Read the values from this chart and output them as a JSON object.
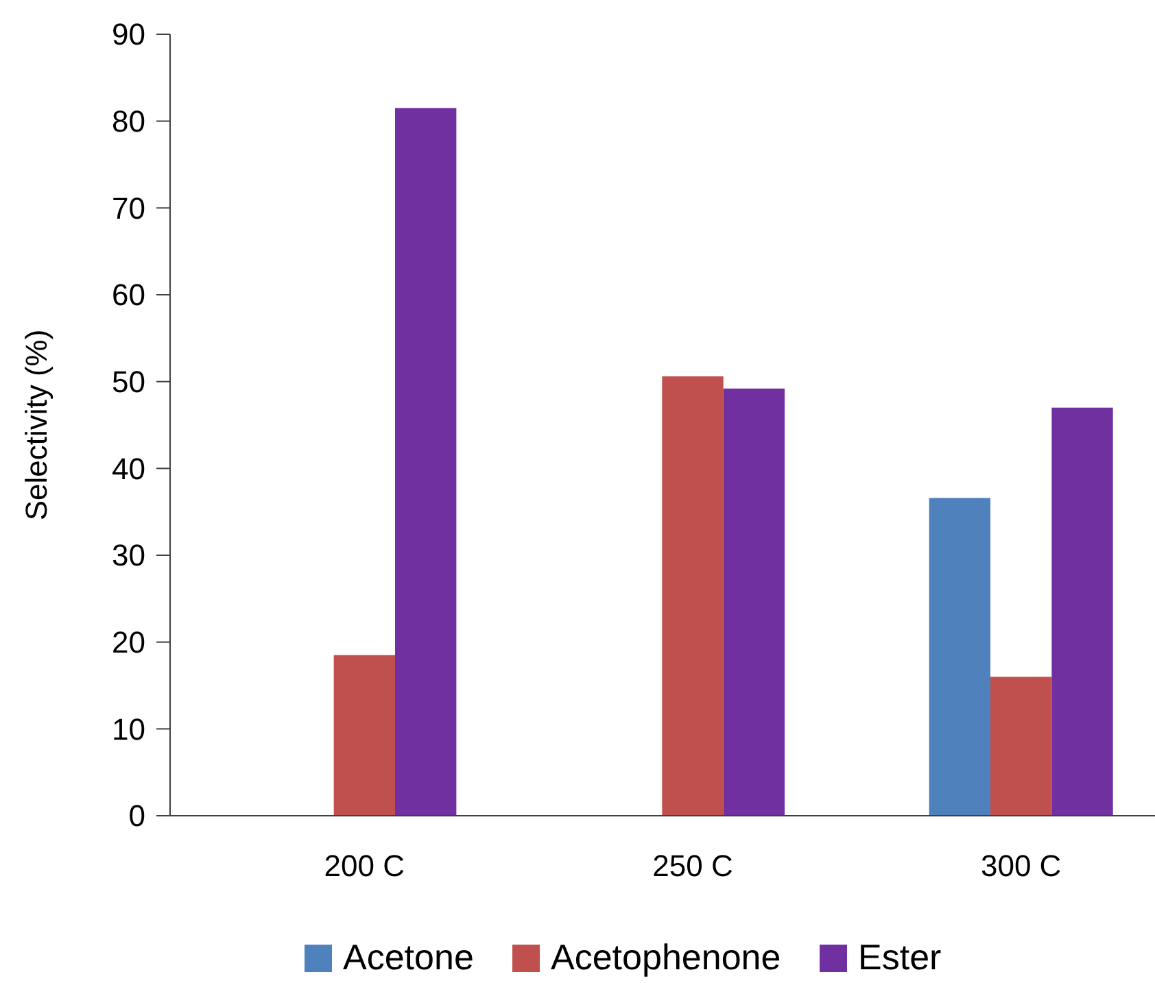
{
  "chart_data": {
    "type": "bar",
    "ylabel": "Selectivity (%)",
    "categories": [
      "200 C",
      "250 C",
      "300 C"
    ],
    "series": [
      {
        "name": "Acetone",
        "color": "#4f81bd",
        "values": [
          0,
          0,
          36.6
        ]
      },
      {
        "name": "Acetophenone",
        "color": "#c0504d",
        "values": [
          18.5,
          50.6,
          16.0
        ]
      },
      {
        "name": "Ester",
        "color": "#7030a0",
        "values": [
          81.5,
          49.2,
          47.0
        ]
      }
    ],
    "ylim": [
      0,
      90
    ],
    "yticks": [
      0,
      10,
      20,
      30,
      40,
      50,
      60,
      70,
      80,
      90
    ],
    "legend": "bottom"
  }
}
